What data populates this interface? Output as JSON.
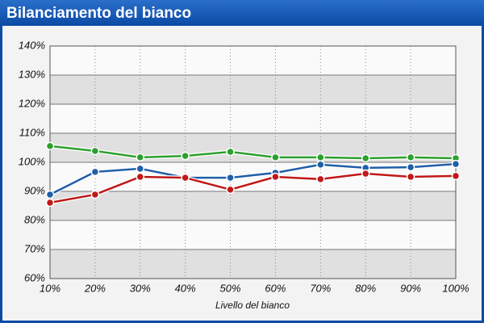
{
  "chart_data": {
    "type": "line",
    "title": "Bilanciamento del bianco",
    "x_label": "Livello del bianco",
    "categories": [
      "10%",
      "20%",
      "30%",
      "40%",
      "50%",
      "60%",
      "70%",
      "80%",
      "90%",
      "100%"
    ],
    "series": [
      {
        "color": "#2ca02c",
        "values": [
          105.6,
          103.9,
          101.7,
          102.2,
          103.6,
          101.7,
          101.7,
          101.4,
          101.7,
          101.4
        ]
      },
      {
        "color": "#1f5fa8",
        "values": [
          88.9,
          96.7,
          97.8,
          94.7,
          94.7,
          96.4,
          99.2,
          98.1,
          98.3,
          99.4
        ]
      },
      {
        "color": "#c01818",
        "values": [
          86.1,
          88.9,
          95.0,
          94.7,
          90.6,
          95.0,
          94.2,
          96.1,
          95.0,
          95.3
        ]
      }
    ],
    "ylim": [
      60,
      140
    ],
    "yticks": [
      {
        "value": 60,
        "label": "60%"
      },
      {
        "value": 70,
        "label": "70%"
      },
      {
        "value": 80,
        "label": "80%"
      },
      {
        "value": 90,
        "label": "90%"
      },
      {
        "value": 100,
        "label": "100%"
      },
      {
        "value": 110,
        "label": "110%"
      },
      {
        "value": 120,
        "label": "120%"
      },
      {
        "value": 130,
        "label": "130%"
      },
      {
        "value": 140,
        "label": "140%"
      }
    ],
    "grid": true
  }
}
